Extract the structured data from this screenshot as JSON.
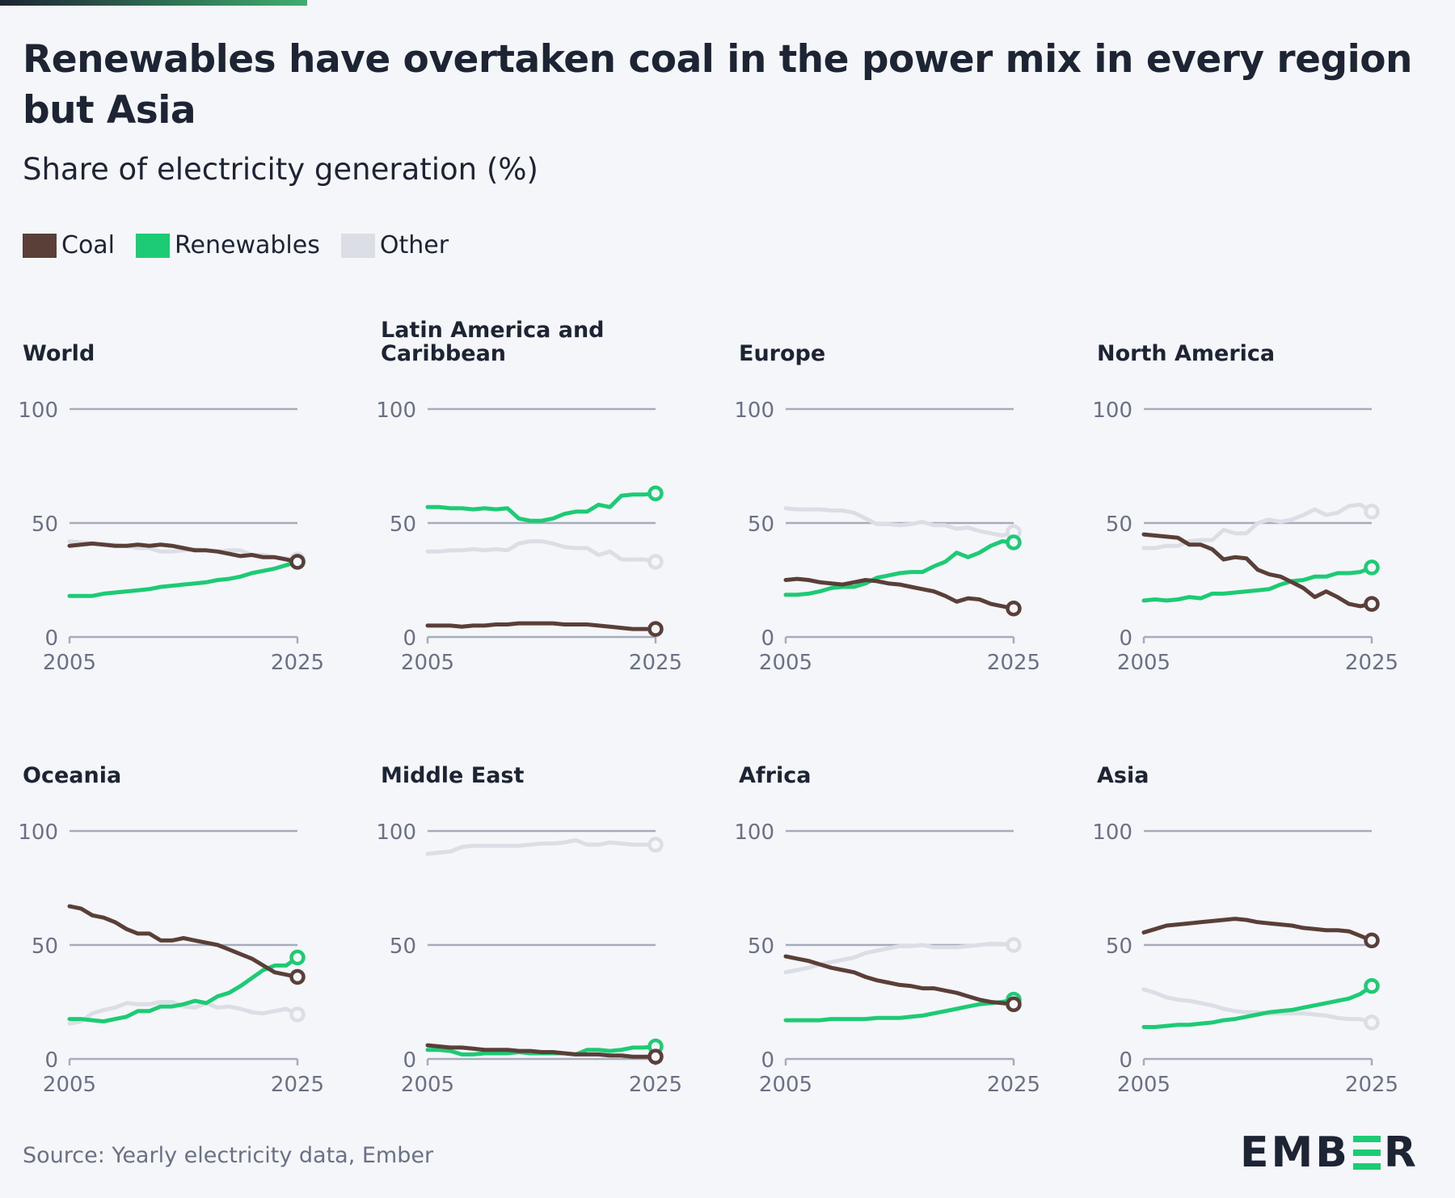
{
  "header": {
    "title": "Renewables have overtaken coal in the power mix in every region but Asia",
    "subtitle": "Share of electricity generation (%)"
  },
  "colors": {
    "coal": "#5a3f38",
    "renewables": "#1ecb75",
    "other": "#dcdee5",
    "grid": "#a6acbc",
    "axis_text": "#6a7184",
    "topbar_start": "#1d2433",
    "topbar_end": "#3fae6e"
  },
  "footer": {
    "source": "Source: Yearly electricity data, Ember",
    "logo_left": "EMB",
    "logo_right": "R"
  },
  "chart_data": {
    "type": "line",
    "y_ticks": [
      "0",
      "50",
      "100"
    ],
    "x_ticks": [
      "2005",
      "2025"
    ],
    "ylim": [
      0,
      100
    ],
    "xlim": [
      2005,
      2025
    ],
    "legend": {
      "placement": "top-left",
      "entries": [
        "Coal",
        "Renewables",
        "Other"
      ]
    },
    "grid": true,
    "x": [
      2005,
      2006,
      2007,
      2008,
      2009,
      2010,
      2011,
      2012,
      2013,
      2014,
      2015,
      2016,
      2017,
      2018,
      2019,
      2020,
      2021,
      2022,
      2023,
      2024,
      2025
    ],
    "panels": [
      {
        "title": "World",
        "series": [
          {
            "name": "Coal",
            "values": [
              40,
              40.5,
              41,
              40.5,
              40,
              40,
              40.5,
              40,
              40.5,
              40,
              39,
              38,
              38,
              37.5,
              36.5,
              35.5,
              36,
              35,
              35,
              34,
              33
            ]
          },
          {
            "name": "Renewables",
            "values": [
              18,
              18,
              18,
              19,
              19.5,
              20,
              20.5,
              21,
              22,
              22.5,
              23,
              23.5,
              24,
              25,
              25.5,
              26.5,
              28,
              29,
              30,
              31.5,
              33
            ]
          },
          {
            "name": "Other",
            "values": [
              42,
              41.5,
              41,
              40.5,
              40.5,
              40,
              39,
              39,
              37.5,
              37.5,
              38,
              38.5,
              38,
              37.5,
              38,
              38,
              36,
              36,
              35,
              34.5,
              34
            ]
          }
        ]
      },
      {
        "title": "Latin America and Caribbean",
        "series": [
          {
            "name": "Coal",
            "values": [
              5,
              5,
              5,
              4.5,
              5,
              5,
              5.5,
              5.5,
              6,
              6,
              6,
              6,
              5.5,
              5.5,
              5.5,
              5,
              4.5,
              4,
              3.5,
              3.5,
              3.5
            ]
          },
          {
            "name": "Renewables",
            "values": [
              57,
              57,
              56.5,
              56.5,
              56,
              56.5,
              56,
              56.5,
              52,
              51,
              51,
              52,
              54,
              55,
              55,
              58,
              57,
              62,
              62.5,
              62.5,
              63
            ]
          },
          {
            "name": "Other",
            "values": [
              37.5,
              37.5,
              38,
              38,
              38.5,
              38,
              38.5,
              38,
              41,
              42,
              42,
              41,
              39.5,
              39,
              39,
              36,
              37.5,
              34,
              34,
              34,
              33
            ]
          }
        ]
      },
      {
        "title": "Europe",
        "series": [
          {
            "name": "Coal",
            "values": [
              25,
              25.5,
              25,
              24,
              23.5,
              23,
              24,
              25,
              24.5,
              23.5,
              23,
              22,
              21,
              20,
              18,
              15.5,
              17,
              16.5,
              14.5,
              13.5,
              12.5
            ]
          },
          {
            "name": "Renewables",
            "values": [
              18.5,
              18.5,
              19,
              20,
              21.5,
              22,
              22,
              23.5,
              26,
              27,
              28,
              28.5,
              28.5,
              31,
              33,
              37,
              35,
              37,
              40,
              42,
              41.5
            ]
          },
          {
            "name": "Other",
            "values": [
              56.5,
              56,
              56,
              56,
              55.5,
              55.5,
              54.5,
              52,
              49.5,
              49.5,
              49,
              49.5,
              50.5,
              49,
              49,
              47.5,
              48,
              46.5,
              45.5,
              44.5,
              46
            ]
          }
        ]
      },
      {
        "title": "North America",
        "series": [
          {
            "name": "Coal",
            "values": [
              45,
              44.5,
              44,
              43.5,
              40.5,
              40.5,
              38.5,
              34,
              35,
              34.5,
              29.5,
              27.5,
              26.5,
              24,
              21.5,
              17.5,
              20,
              17.5,
              14.5,
              13.5,
              14.5
            ]
          },
          {
            "name": "Renewables",
            "values": [
              16,
              16.5,
              16,
              16.5,
              17.5,
              17,
              19,
              19,
              19.5,
              20,
              20.5,
              21,
              23,
              24.5,
              25,
              26.5,
              26.5,
              28,
              28,
              28.5,
              30.5
            ]
          },
          {
            "name": "Other",
            "values": [
              39,
              39,
              40,
              40,
              42,
              42.5,
              42.5,
              47,
              45.5,
              45.5,
              50,
              51.5,
              50.5,
              51.5,
              53.5,
              56,
              53.5,
              54.5,
              57.5,
              58,
              55
            ]
          }
        ]
      },
      {
        "title": "Oceania",
        "series": [
          {
            "name": "Coal",
            "values": [
              67,
              66,
              63,
              62,
              60,
              57,
              55,
              55,
              52,
              52,
              53,
              52,
              51,
              50,
              48,
              46,
              44,
              41,
              38,
              37,
              36
            ]
          },
          {
            "name": "Renewables",
            "values": [
              17.5,
              17.5,
              17,
              16.5,
              17.5,
              18.5,
              21,
              21,
              23,
              23,
              24,
              25.5,
              24.5,
              27.5,
              29,
              32,
              35.5,
              39,
              41,
              41,
              44.5
            ]
          },
          {
            "name": "Other",
            "values": [
              15.5,
              16.5,
              20,
              21.5,
              22.5,
              24.5,
              24,
              24,
              25,
              25,
              23,
              22.5,
              24.5,
              22.5,
              23,
              22,
              20.5,
              20,
              21,
              22,
              19.5
            ]
          }
        ]
      },
      {
        "title": "Middle East",
        "series": [
          {
            "name": "Coal",
            "values": [
              6,
              5.5,
              5,
              5,
              4.5,
              4,
              4,
              4,
              3.5,
              3.5,
              3,
              3,
              2.5,
              2,
              2,
              2,
              1.5,
              1.5,
              1,
              1,
              1
            ]
          },
          {
            "name": "Renewables",
            "values": [
              4,
              4,
              3.5,
              2,
              2,
              2.5,
              2.5,
              2.5,
              3,
              2.5,
              2.5,
              2.5,
              2.5,
              2,
              4,
              4,
              3.5,
              4,
              5,
              5,
              5.5
            ]
          },
          {
            "name": "Other",
            "values": [
              90,
              90.5,
              91,
              93,
              93.5,
              93.5,
              93.5,
              93.5,
              93.5,
              94,
              94.5,
              94.5,
              95,
              96,
              94,
              94,
              95,
              94.5,
              94,
              94,
              94
            ]
          }
        ]
      },
      {
        "title": "Africa",
        "series": [
          {
            "name": "Coal",
            "values": [
              45,
              44,
              43,
              41.5,
              40,
              39,
              38,
              36,
              34.5,
              33.5,
              32.5,
              32,
              31,
              31,
              30,
              29,
              27.5,
              26,
              25,
              24.5,
              24
            ]
          },
          {
            "name": "Renewables",
            "values": [
              17,
              17,
              17,
              17,
              17.5,
              17.5,
              17.5,
              17.5,
              18,
              18,
              18,
              18.5,
              19,
              20,
              21,
              22,
              23,
              24,
              24.5,
              25,
              26
            ]
          },
          {
            "name": "Other",
            "values": [
              38,
              39,
              40,
              41.5,
              42.5,
              43.5,
              44.5,
              46.5,
              47.5,
              48.5,
              49.5,
              49.5,
              50,
              49,
              49,
              49,
              49.5,
              50,
              50.5,
              50.5,
              50
            ]
          }
        ]
      },
      {
        "title": "Asia",
        "series": [
          {
            "name": "Coal",
            "values": [
              55.5,
              57,
              58.5,
              59,
              59.5,
              60,
              60.5,
              61,
              61.5,
              61,
              60,
              59.5,
              59,
              58.5,
              57.5,
              57,
              56.5,
              56.5,
              56,
              54,
              52
            ]
          },
          {
            "name": "Renewables",
            "values": [
              14,
              14,
              14.5,
              15,
              15,
              15.5,
              16,
              17,
              17.5,
              18.5,
              19.5,
              20.5,
              21,
              21.5,
              22.5,
              23.5,
              24.5,
              25.5,
              26.5,
              28.5,
              32
            ]
          },
          {
            "name": "Other",
            "values": [
              30.5,
              29,
              27,
              26,
              25.5,
              24.5,
              23.5,
              22,
              21,
              20.5,
              20.5,
              20,
              20,
              20,
              20,
              19.5,
              19,
              18,
              17.5,
              17.5,
              16
            ]
          }
        ]
      }
    ]
  }
}
